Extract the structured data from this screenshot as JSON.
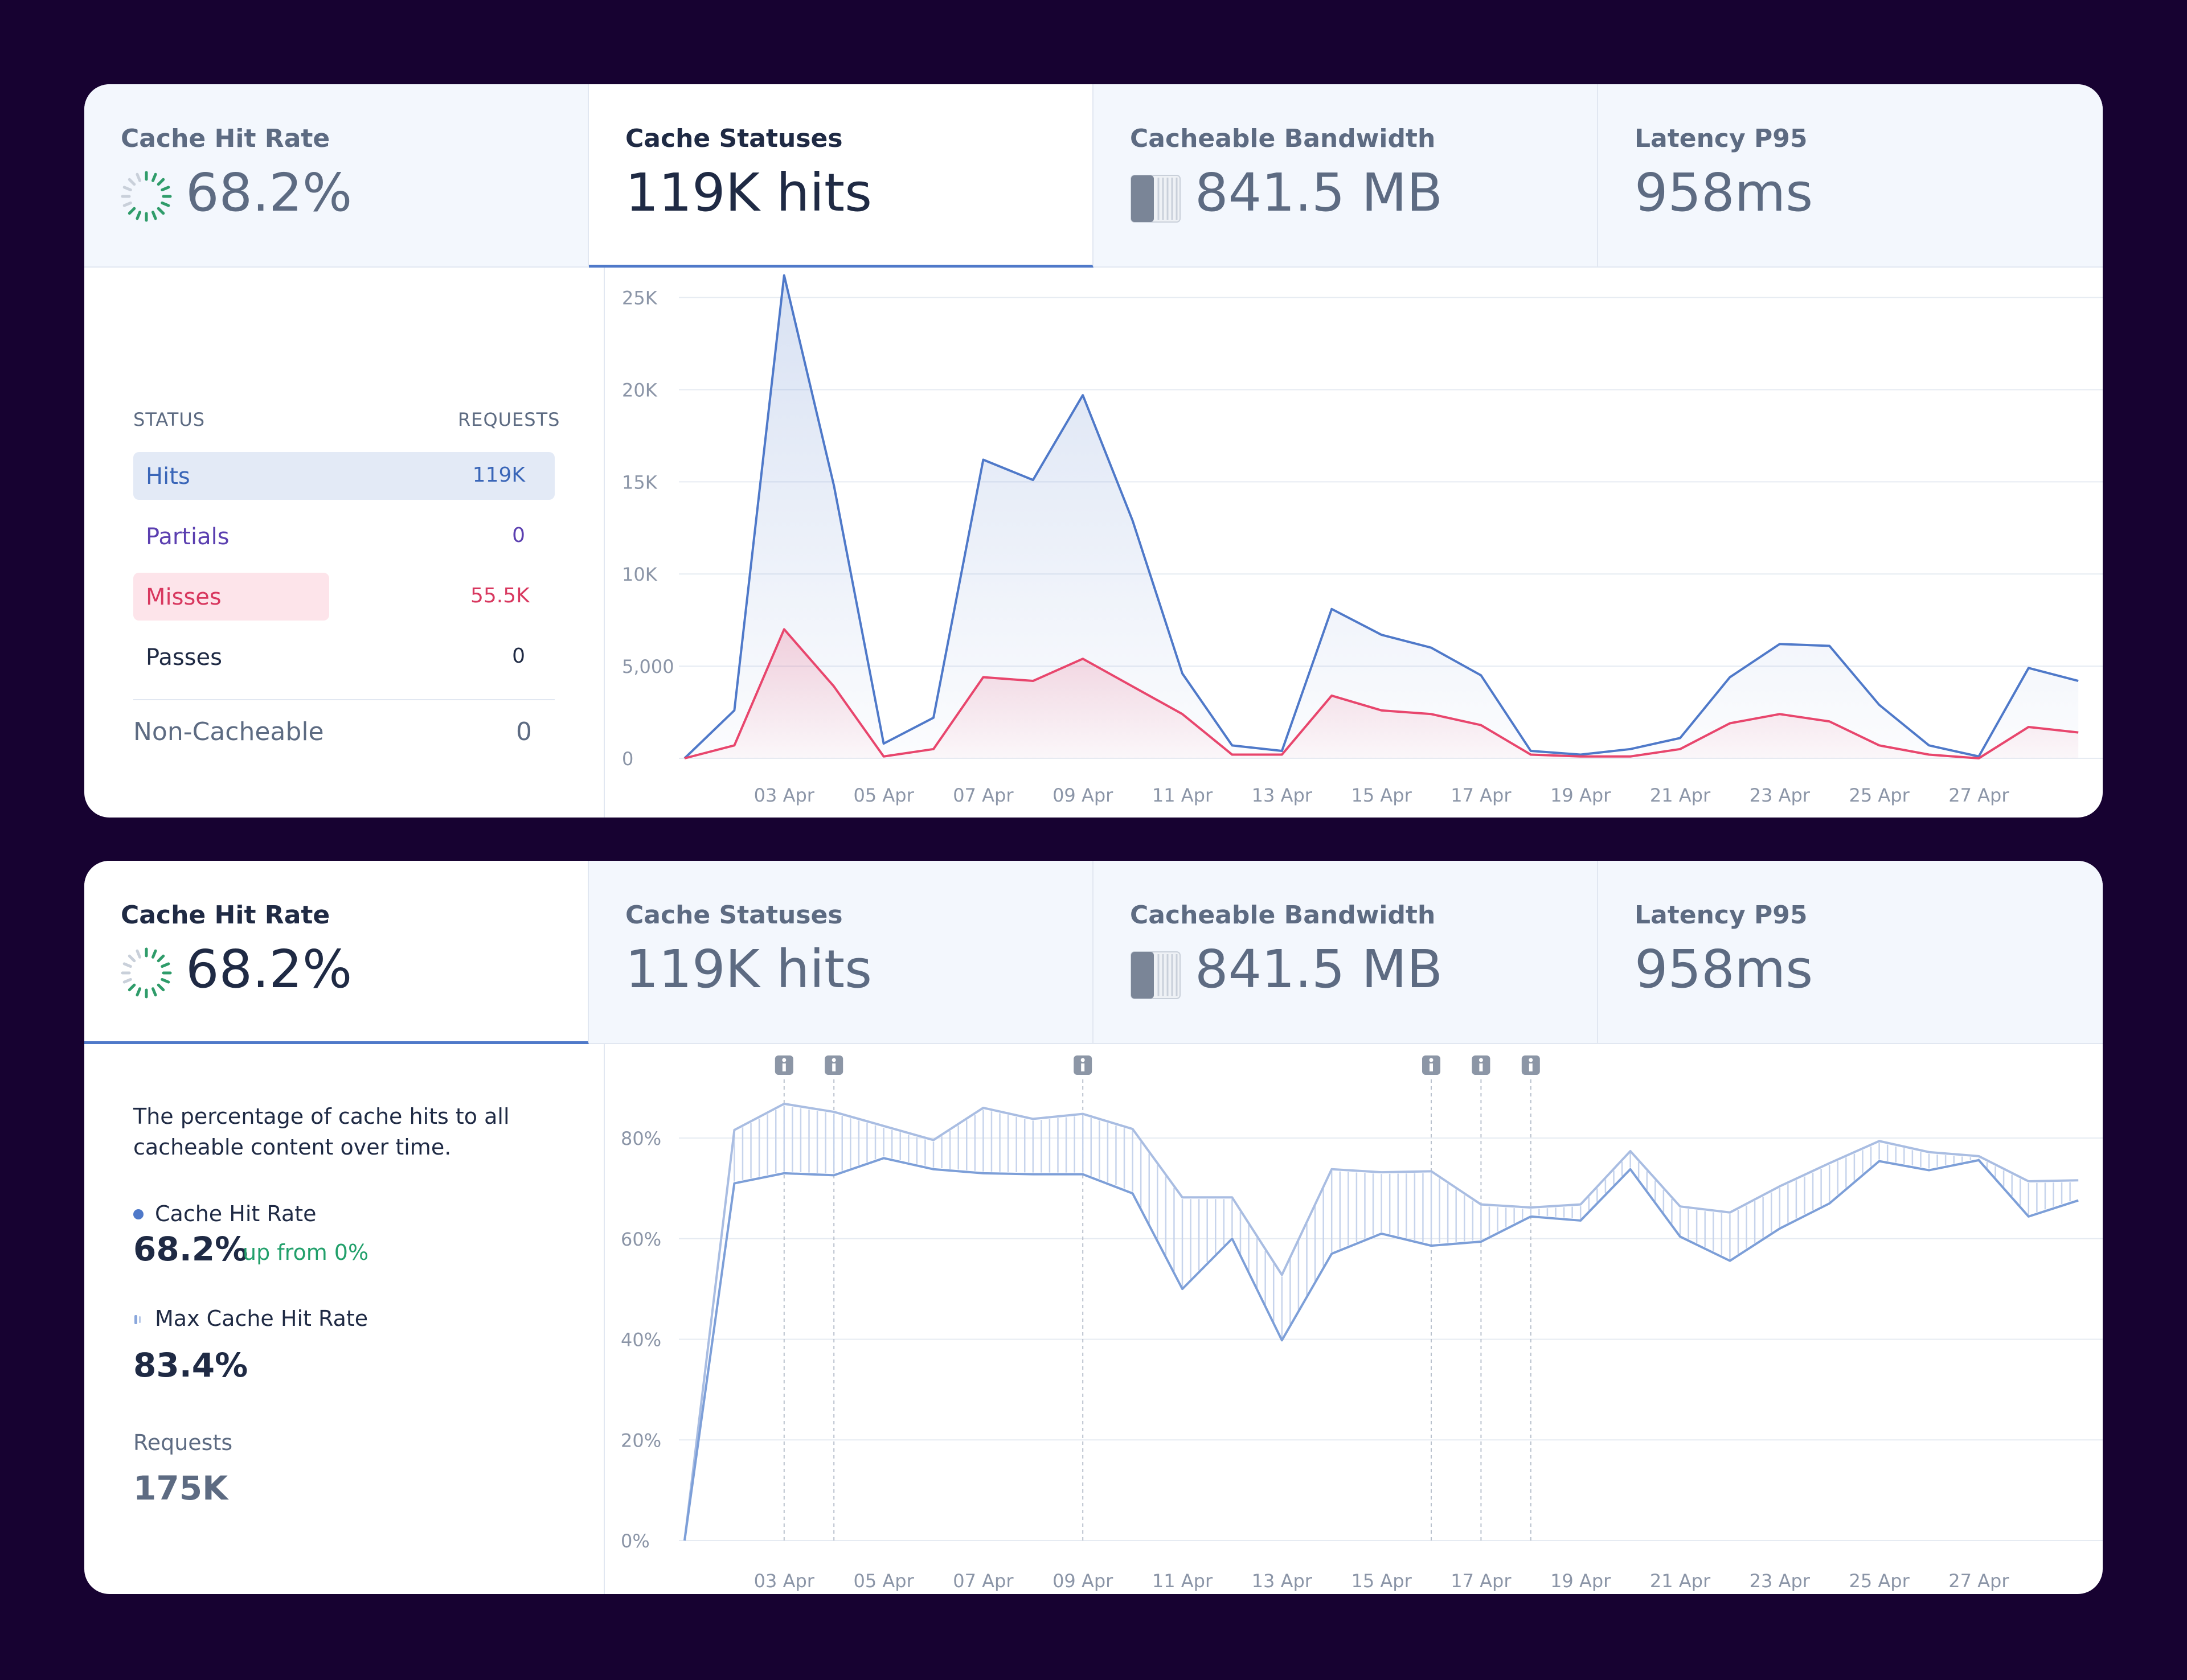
{
  "panel1": {
    "tabs": [
      {
        "title": "Cache Hit Rate",
        "value": "68.2%",
        "icon": "progress-ring-icon"
      },
      {
        "title": "Cache Statuses",
        "value": "119K hits"
      },
      {
        "title": "Cacheable Bandwidth",
        "value": "841.5 MB",
        "icon": "bandwidth-bar-icon"
      },
      {
        "title": "Latency P95",
        "value": "958ms"
      }
    ],
    "active_tab": "Cache Statuses",
    "status_table": {
      "col_status": "STATUS",
      "col_requests": "REQUESTS",
      "rows": [
        {
          "label": "Hits",
          "value": "119K"
        },
        {
          "label": "Partials",
          "value": "0"
        },
        {
          "label": "Misses",
          "value": "55.5K"
        },
        {
          "label": "Passes",
          "value": "0"
        }
      ],
      "noncacheable": {
        "label": "Non-Cacheable",
        "value": "0"
      }
    }
  },
  "panel2": {
    "tabs": [
      {
        "title": "Cache Hit Rate",
        "value": "68.2%",
        "icon": "progress-ring-icon"
      },
      {
        "title": "Cache Statuses",
        "value": "119K hits"
      },
      {
        "title": "Cacheable Bandwidth",
        "value": "841.5 MB",
        "icon": "bandwidth-bar-icon"
      },
      {
        "title": "Latency P95",
        "value": "958ms"
      }
    ],
    "active_tab": "Cache Hit Rate",
    "sidebar": {
      "description": "The percentage of cache hits to all cacheable content over time.",
      "hit_rate_label": "Cache Hit Rate",
      "hit_rate_value": "68.2%",
      "hit_rate_change": "up from 0%",
      "max_label": "Max Cache Hit Rate",
      "max_value": "83.4%",
      "requests_label": "Requests",
      "requests_value": "175K"
    }
  },
  "colors": {
    "hits": "#4f79c9",
    "misses": "#e8466d",
    "partials": "#5b3fb0",
    "up": "#22a06b",
    "background": "#170231"
  },
  "chart_data": [
    {
      "type": "area",
      "x_tick_labels": [
        "03 Apr",
        "05 Apr",
        "07 Apr",
        "09 Apr",
        "11 Apr",
        "13 Apr",
        "15 Apr",
        "17 Apr",
        "19 Apr",
        "21 Apr",
        "23 Apr",
        "25 Apr",
        "27 Apr"
      ],
      "y_tick_labels": [
        "0",
        "5,000",
        "10K",
        "15K",
        "20K",
        "25K"
      ],
      "ylim": [
        0,
        26500
      ],
      "x": [
        "01 Apr",
        "02 Apr",
        "03 Apr",
        "04 Apr",
        "05 Apr",
        "06 Apr",
        "07 Apr",
        "08 Apr",
        "09 Apr",
        "10 Apr",
        "11 Apr",
        "12 Apr",
        "13 Apr",
        "14 Apr",
        "15 Apr",
        "16 Apr",
        "17 Apr",
        "18 Apr",
        "19 Apr",
        "20 Apr",
        "21 Apr",
        "22 Apr",
        "23 Apr",
        "24 Apr",
        "25 Apr",
        "26 Apr",
        "27 Apr",
        "28 Apr",
        "29 Apr"
      ],
      "series": [
        {
          "values": [
            0,
            2600,
            26200,
            14800,
            800,
            2200,
            16200,
            15100,
            19700,
            12900,
            4600,
            700,
            400,
            8100,
            6700,
            6000,
            4500,
            400,
            200,
            500,
            1100,
            4400,
            6200,
            6100,
            2900,
            700,
            100,
            4900,
            4200
          ]
        },
        {
          "values": [
            0,
            700,
            7000,
            3900,
            100,
            500,
            4400,
            4200,
            5400,
            3900,
            2400,
            200,
            200,
            3400,
            2600,
            2400,
            1800,
            200,
            100,
            100,
            500,
            1900,
            2400,
            2000,
            700,
            200,
            0,
            1700,
            1400
          ]
        }
      ],
      "grid": true
    },
    {
      "type": "line",
      "x_tick_labels": [
        "03 Apr",
        "05 Apr",
        "07 Apr",
        "09 Apr",
        "11 Apr",
        "13 Apr",
        "15 Apr",
        "17 Apr",
        "19 Apr",
        "21 Apr",
        "23 Apr",
        "25 Apr",
        "27 Apr"
      ],
      "y_tick_labels": [
        "0%",
        "20%",
        "40%",
        "60%",
        "80%"
      ],
      "ylim": [
        0,
        90
      ],
      "x": [
        "01 Apr",
        "02 Apr",
        "03 Apr",
        "04 Apr",
        "05 Apr",
        "06 Apr",
        "07 Apr",
        "08 Apr",
        "09 Apr",
        "10 Apr",
        "11 Apr",
        "12 Apr",
        "13 Apr",
        "14 Apr",
        "15 Apr",
        "16 Apr",
        "17 Apr",
        "18 Apr",
        "19 Apr",
        "20 Apr",
        "21 Apr",
        "22 Apr",
        "23 Apr",
        "24 Apr",
        "25 Apr",
        "26 Apr",
        "27 Apr",
        "28 Apr",
        "29 Apr"
      ],
      "series": [
        {
          "name": "Cache Hit Rate",
          "values": [
            0,
            71,
            73,
            72.6,
            76,
            73.8,
            73,
            72.8,
            72.8,
            69,
            50,
            60,
            39.8,
            57,
            61,
            58.6,
            59.4,
            64.4,
            63.6,
            73.8,
            60.4,
            55.6,
            62,
            67,
            75.4,
            73.6,
            75.6,
            64.4,
            67.6
          ]
        },
        {
          "name": "Max Cache Hit Rate",
          "values": [
            0,
            81.6,
            86.8,
            85.2,
            82.4,
            79.6,
            86,
            83.8,
            84.8,
            81.8,
            68.2,
            68.2,
            52.8,
            73.8,
            73.2,
            73.4,
            66.8,
            66.2,
            66.8,
            77.4,
            66.4,
            65.2,
            70.4,
            75,
            79.4,
            77.2,
            76.4,
            71.4,
            71.6
          ]
        }
      ],
      "annotation_dates": [
        "03 Apr",
        "04 Apr",
        "09 Apr",
        "16 Apr",
        "17 Apr",
        "18 Apr"
      ],
      "annotation_icon": "info-icon",
      "grid": true
    }
  ]
}
